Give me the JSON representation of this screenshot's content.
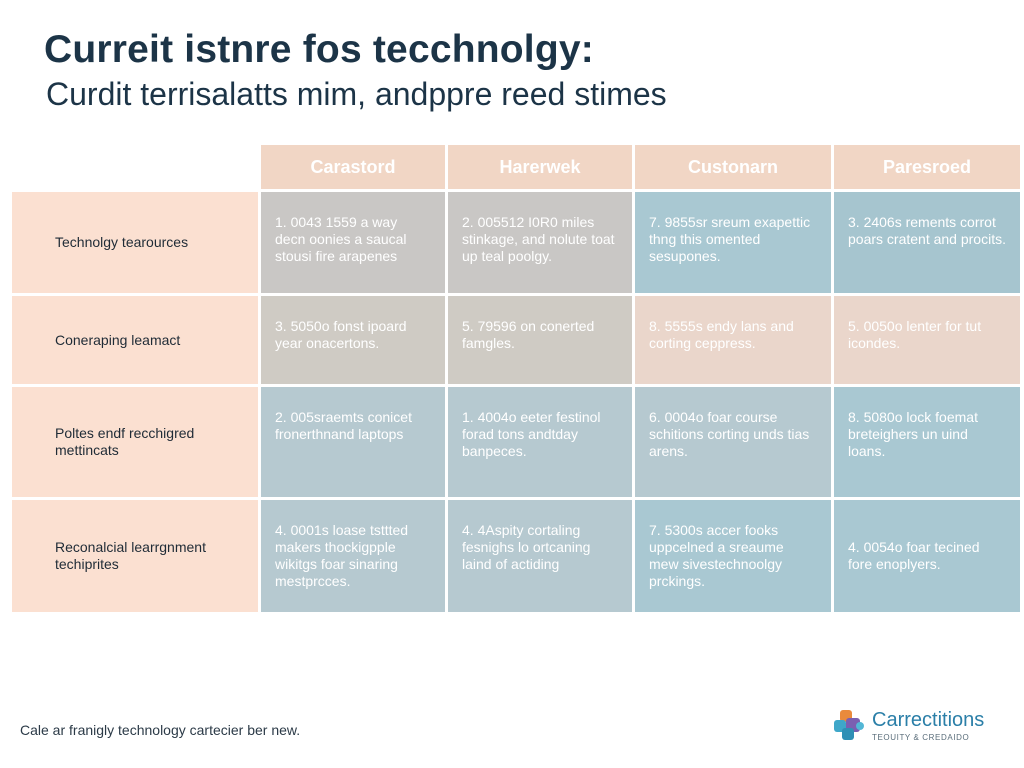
{
  "title": "Curreit istnre fos tecchnolgy:",
  "subtitle": "Curdit terrisalatts mim, andppre reed stimes",
  "table": {
    "headers": [
      "Carastord",
      "Harerwek",
      "Custonarn",
      "Paresroed"
    ],
    "rows": [
      {
        "label": "Technolgy tearources",
        "cells": [
          "1. 0043 1559 a way decn oonies a saucal stousi fire arapenes",
          "2. 005512 I0R0 miles stinkage, and nolute toat up teal poolgy.",
          "7. 9855sr sreum exapettic thng this omented sesupones.",
          "3. 2406s rements corrot poars cratent and procits."
        ]
      },
      {
        "label": "Coneraping leamact",
        "cells": [
          "3. 5050o fonst ipoard year onacertons.",
          "5. 79596 on conerted famgles.",
          "8. 5555s endy lans and corting ceppress.",
          "5. 0050o lenter for tut icondes."
        ]
      },
      {
        "label": "Poltes endf recchigred mettincats",
        "cells": [
          "2. 005sraemts conicet fronerthnand laptops",
          "1. 4004o eeter festinol forad tons andtday banpeces.",
          "6. 0004o foar course schitions corting unds tias arens.",
          "8. 5080o lock foemat breteighers un uind loans."
        ]
      },
      {
        "label": "Reconalcial learrgnment techiprites",
        "cells": [
          "4. 0001s loase tsttted makers thockigpple wikitgs foar sinaring mestprcces.",
          "4. 4Aspity cortaling fesnighs lo ortcaning laind of actiding",
          "7. 5300s accer fooks uppcelned a sreaume mew sivestechnoolgy prckings.",
          "4. 0054o foar tecined fore enoplyers."
        ]
      }
    ]
  },
  "footer": "Cale ar franigly technology cartecier ber new.",
  "logo": {
    "name": "Carrectitions",
    "tagline": "TEOUITY & CREDAIDO"
  },
  "colors": {
    "header_bg": "#f1d6c5",
    "row_label_bg": "#fbe0d1",
    "cell_grey": "#c9c7c5",
    "cell_blue": "#a9c8d2",
    "title_text": "#1c3447",
    "logo_text": "#2b7fa8"
  }
}
